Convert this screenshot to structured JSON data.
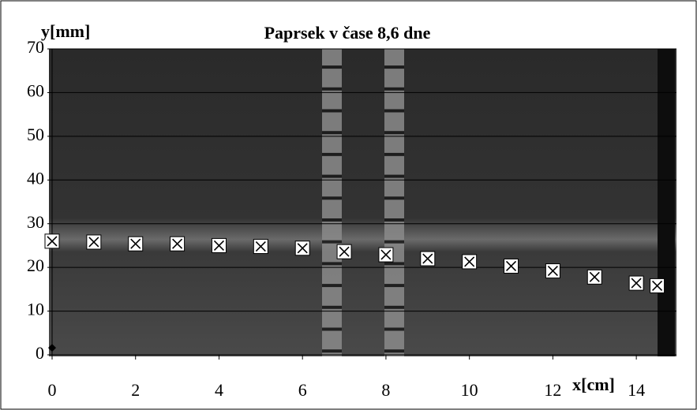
{
  "chart_data": {
    "type": "scatter",
    "title": "Paprsek v čase 8,6 dne",
    "x_label": "x[cm]",
    "y_label": "y[mm]",
    "series": [
      {
        "marker": "x-box",
        "color": "#000000",
        "x": [
          0,
          1,
          2,
          3,
          4,
          5,
          6,
          7,
          8,
          9,
          10,
          11,
          12,
          13,
          14,
          14.5
        ],
        "values": [
          26,
          25.8,
          25.4,
          25.4,
          25.0,
          24.8,
          24.4,
          23.6,
          22.9,
          22.0,
          21.3,
          20.3,
          19.2,
          17.8,
          16.4,
          15.8
        ]
      },
      {
        "marker": "diamond",
        "color": "#000000",
        "x": [
          0
        ],
        "values": [
          1.6
        ]
      }
    ],
    "xlim": [
      0,
      15
    ],
    "xticks": [
      0,
      2,
      4,
      6,
      8,
      10,
      12,
      14
    ],
    "ylim": [
      0,
      70
    ],
    "yticks": [
      0,
      10,
      20,
      30,
      40,
      50,
      60,
      70
    ],
    "grid": true
  }
}
